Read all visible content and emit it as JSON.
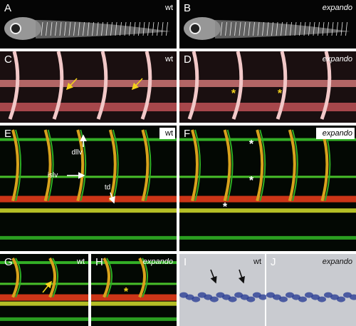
{
  "panels": [
    {
      "letter": "A",
      "label": "wt"
    },
    {
      "letter": "B",
      "label": "expando"
    },
    {
      "letter": "C",
      "label": "wt"
    },
    {
      "letter": "D",
      "label": "expando",
      "asterisks": [
        "*",
        "*"
      ]
    },
    {
      "letter": "E",
      "label": "wt",
      "callouts": [
        "dllv",
        "islv",
        "td"
      ]
    },
    {
      "letter": "F",
      "label": "expando",
      "asterisks": [
        "*",
        "*",
        "*"
      ]
    },
    {
      "letter": "G",
      "label": "wt"
    },
    {
      "letter": "H",
      "label": "expando",
      "asterisks": [
        "*"
      ]
    },
    {
      "letter": "I",
      "label": "wt"
    },
    {
      "letter": "J",
      "label": "expando"
    }
  ]
}
